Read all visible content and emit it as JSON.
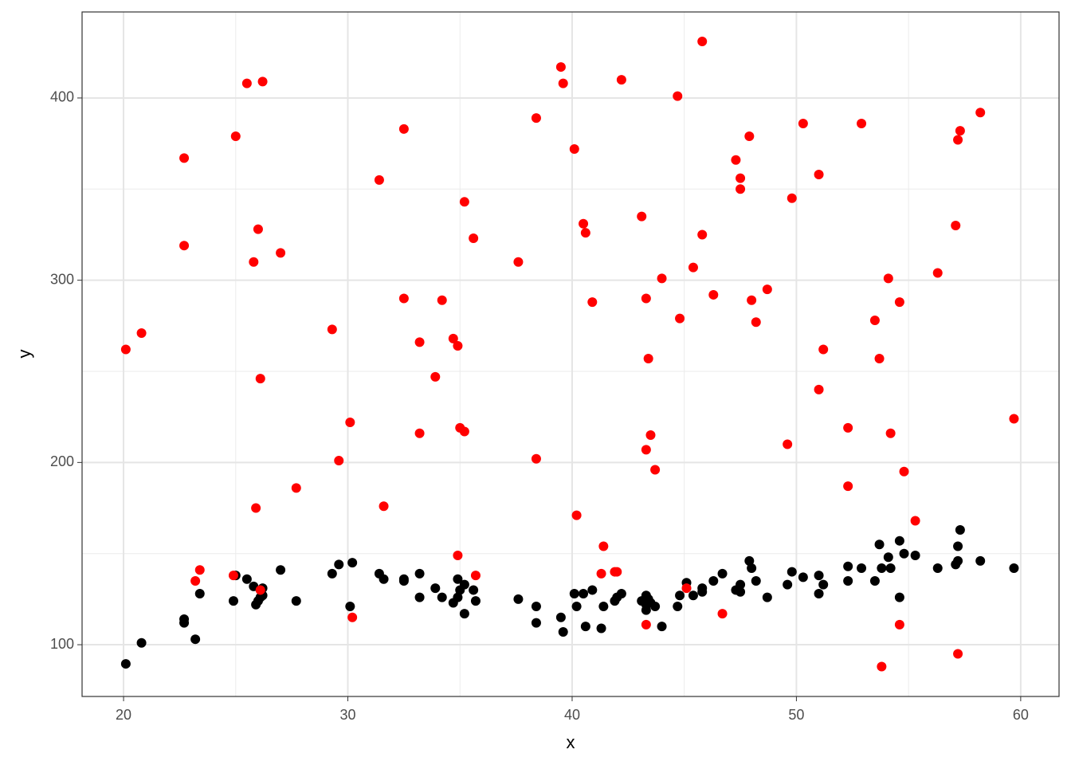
{
  "chart_data": {
    "type": "scatter",
    "x_label": "x",
    "y_label": "y",
    "xlim": [
      18.15,
      61.71
    ],
    "ylim": [
      71.6,
      447.2
    ],
    "xticks": [
      20,
      30,
      40,
      50,
      60
    ],
    "yticks": [
      100,
      200,
      300,
      400
    ],
    "xminor": [
      25,
      35,
      45,
      55
    ],
    "yminor": [
      150,
      250,
      350
    ],
    "grid": true,
    "series": [
      {
        "color": "#000000",
        "x": [
          20.1,
          20.8,
          22.7,
          22.7,
          23.2,
          23.4,
          24.9,
          25.0,
          25.5,
          25.8,
          25.9,
          26.0,
          26.1,
          26.2,
          26.2,
          27.0,
          27.7,
          29.3,
          29.6,
          30.1,
          30.2,
          31.4,
          31.6,
          32.5,
          32.5,
          33.2,
          33.2,
          33.9,
          34.2,
          34.7,
          34.9,
          34.9,
          35.0,
          35.2,
          35.2,
          35.6,
          35.7,
          37.6,
          38.4,
          38.4,
          39.5,
          39.6,
          40.1,
          40.2,
          40.5,
          40.6,
          40.9,
          41.3,
          41.4,
          41.9,
          42.0,
          42.2,
          43.1,
          43.3,
          43.3,
          43.3,
          43.4,
          43.5,
          43.7,
          44.0,
          44.7,
          44.8,
          45.1,
          45.4,
          45.8,
          45.8,
          46.3,
          46.7,
          47.3,
          47.5,
          47.5,
          47.9,
          48.0,
          48.2,
          48.7,
          49.6,
          49.8,
          50.3,
          51.0,
          51.0,
          51.2,
          52.3,
          52.3,
          52.9,
          53.5,
          53.7,
          53.8,
          54.1,
          54.2,
          54.6,
          54.6,
          54.8,
          55.3,
          56.3,
          57.1,
          57.2,
          57.2,
          57.3,
          58.2,
          59.7
        ],
        "values": [
          89.5,
          101,
          114,
          112,
          103,
          128,
          124,
          138,
          136,
          132,
          122,
          124,
          126,
          127,
          131,
          141,
          124,
          139,
          144,
          121,
          145,
          139,
          136,
          136,
          135,
          139,
          126,
          131,
          126,
          123,
          126,
          136,
          130,
          133,
          117,
          130,
          124,
          125,
          121,
          112,
          115,
          107,
          128,
          121,
          128,
          110,
          130,
          109,
          121,
          124,
          126,
          128,
          124,
          119,
          127,
          122,
          125,
          123,
          121,
          110,
          121,
          127,
          134,
          127,
          129,
          131,
          135,
          139,
          130,
          133,
          129,
          146,
          142,
          135,
          126,
          133,
          140,
          137,
          138,
          128,
          133,
          143,
          135,
          142,
          135,
          155,
          142,
          148,
          142,
          157,
          126,
          150,
          149,
          142,
          144,
          154,
          146,
          163,
          146,
          142
        ]
      },
      {
        "color": "#ff0000",
        "x": [
          20.1,
          20.8,
          22.7,
          22.7,
          23.2,
          23.4,
          24.9,
          25.0,
          25.5,
          26.2,
          25.8,
          26.0,
          26.1,
          26.1,
          25.9,
          27.0,
          27.7,
          29.3,
          29.6,
          30.1,
          30.2,
          31.4,
          31.6,
          32.5,
          32.5,
          33.2,
          33.2,
          33.9,
          34.2,
          34.7,
          34.9,
          34.9,
          35.0,
          35.2,
          35.2,
          35.6,
          35.7,
          37.6,
          38.4,
          38.4,
          39.5,
          39.6,
          40.1,
          40.2,
          40.5,
          40.6,
          40.9,
          41.3,
          41.4,
          41.9,
          42.0,
          42.2,
          43.1,
          43.3,
          43.3,
          43.3,
          43.4,
          43.5,
          43.7,
          44.0,
          44.7,
          44.8,
          45.1,
          45.4,
          45.8,
          45.8,
          46.3,
          46.7,
          47.3,
          47.5,
          47.5,
          47.9,
          48.0,
          48.2,
          48.7,
          49.6,
          49.8,
          50.3,
          51.0,
          51.0,
          51.2,
          52.3,
          52.3,
          52.9,
          53.5,
          53.7,
          53.8,
          54.1,
          54.2,
          54.6,
          54.6,
          54.8,
          55.3,
          56.3,
          57.1,
          57.2,
          57.2,
          57.3,
          58.2,
          59.7
        ],
        "values": [
          262,
          271,
          367,
          319,
          135,
          141,
          138,
          379,
          408,
          409,
          310,
          328,
          246,
          130,
          175,
          315,
          186,
          273,
          201,
          222,
          115,
          355,
          176,
          383,
          290,
          266,
          216,
          247,
          289,
          268,
          264,
          149,
          219,
          217,
          343,
          323,
          138,
          310,
          202,
          389,
          417,
          408,
          372,
          171,
          331,
          326,
          288,
          139,
          154,
          140,
          140,
          410,
          335,
          290,
          111,
          207,
          257,
          215,
          196,
          301,
          401,
          279,
          131,
          307,
          431,
          325,
          292,
          117,
          366,
          356,
          350,
          379,
          289,
          277,
          295,
          210,
          345,
          386,
          358,
          240,
          262,
          219,
          187,
          386,
          278,
          257,
          88,
          301,
          216,
          288,
          111,
          195,
          168,
          304,
          330,
          95,
          377,
          382,
          392,
          224
        ]
      }
    ]
  }
}
